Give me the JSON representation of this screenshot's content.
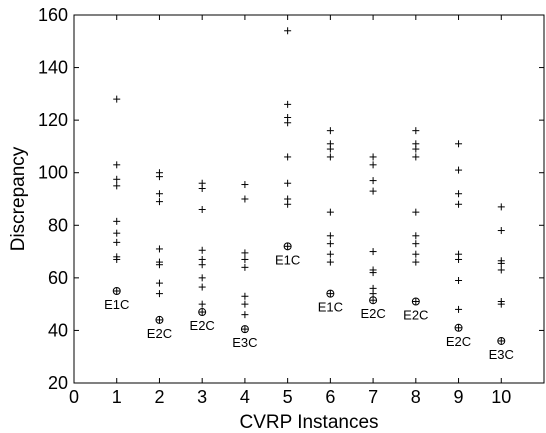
{
  "chart_data": {
    "type": "scatter",
    "xlabel": "CVRP Instances",
    "ylabel": "Discrepancy",
    "xlim": [
      0,
      11
    ],
    "ylim": [
      20,
      160
    ],
    "xticks": [
      0,
      1,
      2,
      3,
      4,
      5,
      6,
      7,
      8,
      9,
      10
    ],
    "yticks": [
      20,
      40,
      60,
      80,
      100,
      120,
      140,
      160
    ],
    "grid": false,
    "legend": "none",
    "colors": {
      "axis": "#000000",
      "marker": "#000000"
    },
    "series": [
      {
        "marker": "plus",
        "points": [
          [
            1,
            128
          ],
          [
            1,
            103
          ],
          [
            1,
            97.5
          ],
          [
            1,
            95
          ],
          [
            1,
            81.5
          ],
          [
            1,
            77
          ],
          [
            1,
            73.5
          ],
          [
            1,
            68
          ],
          [
            1,
            67
          ],
          [
            2,
            100
          ],
          [
            2,
            98.5
          ],
          [
            2,
            92
          ],
          [
            2,
            89
          ],
          [
            2,
            71
          ],
          [
            2,
            66
          ],
          [
            2,
            65
          ],
          [
            2,
            58
          ],
          [
            2,
            54
          ],
          [
            3,
            96
          ],
          [
            3,
            94
          ],
          [
            3,
            86
          ],
          [
            3,
            70.5
          ],
          [
            3,
            67
          ],
          [
            3,
            65
          ],
          [
            3,
            60
          ],
          [
            3,
            56.5
          ],
          [
            3,
            50
          ],
          [
            4,
            95.5
          ],
          [
            4,
            90
          ],
          [
            4,
            69.5
          ],
          [
            4,
            67
          ],
          [
            4,
            64
          ],
          [
            4,
            53
          ],
          [
            4,
            50
          ],
          [
            4,
            46
          ],
          [
            5,
            154
          ],
          [
            5,
            126
          ],
          [
            5,
            121
          ],
          [
            5,
            119
          ],
          [
            5,
            106
          ],
          [
            5,
            96
          ],
          [
            5,
            90
          ],
          [
            5,
            88
          ],
          [
            6,
            116
          ],
          [
            6,
            111
          ],
          [
            6,
            109
          ],
          [
            6,
            106
          ],
          [
            6,
            85
          ],
          [
            6,
            76
          ],
          [
            6,
            73
          ],
          [
            6,
            69
          ],
          [
            6,
            66
          ],
          [
            7,
            106
          ],
          [
            7,
            103
          ],
          [
            7,
            97
          ],
          [
            7,
            93
          ],
          [
            7,
            70
          ],
          [
            7,
            63
          ],
          [
            7,
            62
          ],
          [
            7,
            56
          ],
          [
            7,
            54
          ],
          [
            8,
            116
          ],
          [
            8,
            111
          ],
          [
            8,
            109
          ],
          [
            8,
            106
          ],
          [
            8,
            85
          ],
          [
            8,
            76
          ],
          [
            8,
            73
          ],
          [
            8,
            69
          ],
          [
            8,
            66
          ],
          [
            9,
            111
          ],
          [
            9,
            101
          ],
          [
            9,
            92
          ],
          [
            9,
            88
          ],
          [
            9,
            69
          ],
          [
            9,
            67
          ],
          [
            9,
            59
          ],
          [
            9,
            48
          ],
          [
            10,
            87
          ],
          [
            10,
            78
          ],
          [
            10,
            66.5
          ],
          [
            10,
            65.5
          ],
          [
            10,
            63
          ],
          [
            10,
            51
          ],
          [
            10,
            50
          ]
        ]
      },
      {
        "marker": "circle-plus",
        "points": [
          [
            1,
            55
          ],
          [
            2,
            44
          ],
          [
            3,
            47
          ],
          [
            4,
            40.5
          ],
          [
            5,
            72
          ],
          [
            6,
            54
          ],
          [
            7,
            51.5
          ],
          [
            8,
            51
          ],
          [
            9,
            41
          ],
          [
            10,
            36
          ]
        ],
        "labels": [
          "E1C",
          "E2C",
          "E2C",
          "E3C",
          "E1C",
          "E1C",
          "E2C",
          "E2C",
          "E2C",
          "E3C"
        ]
      }
    ]
  }
}
